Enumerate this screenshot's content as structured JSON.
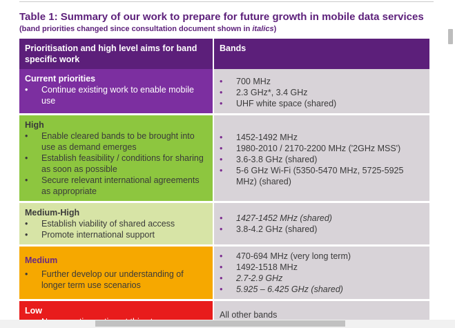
{
  "caption": {
    "title": "Table 1: Summary of our work to prepare for future growth in mobile data services",
    "subtitle_prefix": "(band priorities changed since consultation document shown in ",
    "subtitle_italic": "italics",
    "subtitle_suffix": ")"
  },
  "table": {
    "headers": {
      "col1": "Prioritisation and high level aims for band specific work",
      "col2": "Bands"
    },
    "rows": [
      {
        "priority": "Current priorities",
        "aims": [
          "Continue existing work to enable mobile use"
        ],
        "bands": [
          "700 MHz",
          "2.3 GHz*, 3.4 GHz",
          "UHF white space (shared)"
        ]
      },
      {
        "priority": "High",
        "aims": [
          "Enable cleared bands to be brought into use as demand emerges",
          "Establish feasibility / conditions for sharing as soon as possible",
          "Secure relevant international agreements as appropriate"
        ],
        "bands": [
          "1452-1492 MHz",
          "1980-2010 / 2170-2200 MHz ('2GHz MSS')",
          "3.6-3.8 GHz (shared)",
          "5-6 GHz Wi-Fi (5350-5470 MHz, 5725-5925 MHz) (shared)"
        ]
      },
      {
        "priority": "Medium-High",
        "aims": [
          "Establish viability of shared access",
          "Promote international support"
        ],
        "bands": [
          "1427-1452 MHz (shared)",
          "3.8-4.2 GHz  (shared)"
        ]
      },
      {
        "priority": "Medium",
        "aims": [
          "Further develop our understanding of longer term use scenarios"
        ],
        "bands": [
          "470-694 MHz (very long term)",
          "1492-1518 MHz",
          "2.7-2.9 GHz",
          "5.925 – 6.425 GHz (shared)"
        ]
      },
      {
        "priority": "Low",
        "aims": [
          "No pro-active action at this stage"
        ],
        "bands_text": "All other bands"
      }
    ]
  },
  "colors": {
    "header": "#5c1f7a",
    "current": "#7c2fa0",
    "high": "#8dc63f",
    "medium_high": "#d7e4a6",
    "medium": "#f6a800",
    "low": "#e81c1c",
    "bands_bg": "#d8d3d8"
  }
}
